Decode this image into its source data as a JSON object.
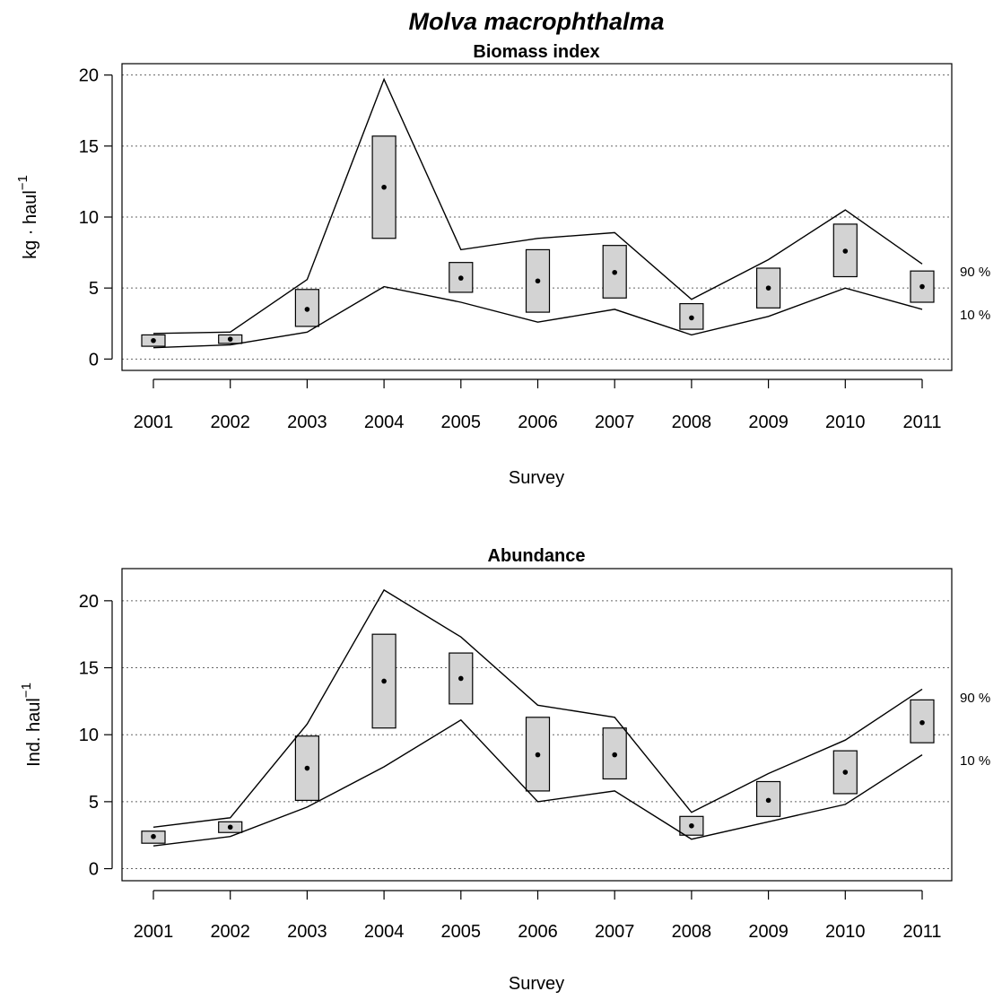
{
  "title": "Molva macrophthalma",
  "chart_data": [
    {
      "type": "line",
      "title": "Biomass index",
      "xlabel": "Survey",
      "ylabel": "kg · haul",
      "ylabel_sup": "−1",
      "categories": [
        "2001",
        "2002",
        "2003",
        "2004",
        "2005",
        "2006",
        "2007",
        "2008",
        "2009",
        "2010",
        "2011"
      ],
      "yticks": [
        0,
        5,
        10,
        15,
        20
      ],
      "ylim": [
        -0.8,
        20.8
      ],
      "grid": "horizontal dotted",
      "mean": [
        1.3,
        1.4,
        3.5,
        12.1,
        5.7,
        5.5,
        6.1,
        2.9,
        5.0,
        7.6,
        5.1
      ],
      "box_low": [
        0.9,
        1.1,
        2.3,
        8.5,
        4.7,
        3.3,
        4.3,
        2.1,
        3.6,
        5.8,
        4.0
      ],
      "box_high": [
        1.7,
        1.7,
        4.9,
        15.7,
        6.8,
        7.7,
        8.0,
        3.9,
        6.4,
        9.5,
        6.2
      ],
      "series": [
        {
          "name": "90 %",
          "values": [
            1.8,
            1.9,
            5.6,
            19.7,
            7.7,
            8.5,
            8.9,
            4.2,
            7.0,
            10.5,
            6.7
          ]
        },
        {
          "name": "10 %",
          "values": [
            0.8,
            1.0,
            1.9,
            5.1,
            4.0,
            2.6,
            3.5,
            1.7,
            3.0,
            5.0,
            3.5
          ]
        }
      ]
    },
    {
      "type": "line",
      "title": "Abundance",
      "xlabel": "Survey",
      "ylabel": "Ind.  haul",
      "ylabel_sup": "−1",
      "categories": [
        "2001",
        "2002",
        "2003",
        "2004",
        "2005",
        "2006",
        "2007",
        "2008",
        "2009",
        "2010",
        "2011"
      ],
      "yticks": [
        0,
        5,
        10,
        15,
        20
      ],
      "ylim": [
        -0.9,
        22.4
      ],
      "grid": "horizontal dotted",
      "mean": [
        2.4,
        3.1,
        7.5,
        14.0,
        14.2,
        8.5,
        8.5,
        3.2,
        5.1,
        7.2,
        10.9
      ],
      "box_low": [
        1.9,
        2.7,
        5.1,
        10.5,
        12.3,
        5.8,
        6.7,
        2.5,
        3.9,
        5.6,
        9.4
      ],
      "box_high": [
        2.8,
        3.5,
        9.9,
        17.5,
        16.1,
        11.3,
        10.5,
        3.9,
        6.5,
        8.8,
        12.6
      ],
      "series": [
        {
          "name": "90 %",
          "values": [
            3.1,
            3.8,
            10.8,
            20.8,
            17.3,
            12.2,
            11.3,
            4.2,
            7.1,
            9.6,
            13.4
          ]
        },
        {
          "name": "10 %",
          "values": [
            1.7,
            2.4,
            4.6,
            7.6,
            11.1,
            5.0,
            5.8,
            2.2,
            3.5,
            4.8,
            8.5
          ]
        }
      ]
    }
  ]
}
